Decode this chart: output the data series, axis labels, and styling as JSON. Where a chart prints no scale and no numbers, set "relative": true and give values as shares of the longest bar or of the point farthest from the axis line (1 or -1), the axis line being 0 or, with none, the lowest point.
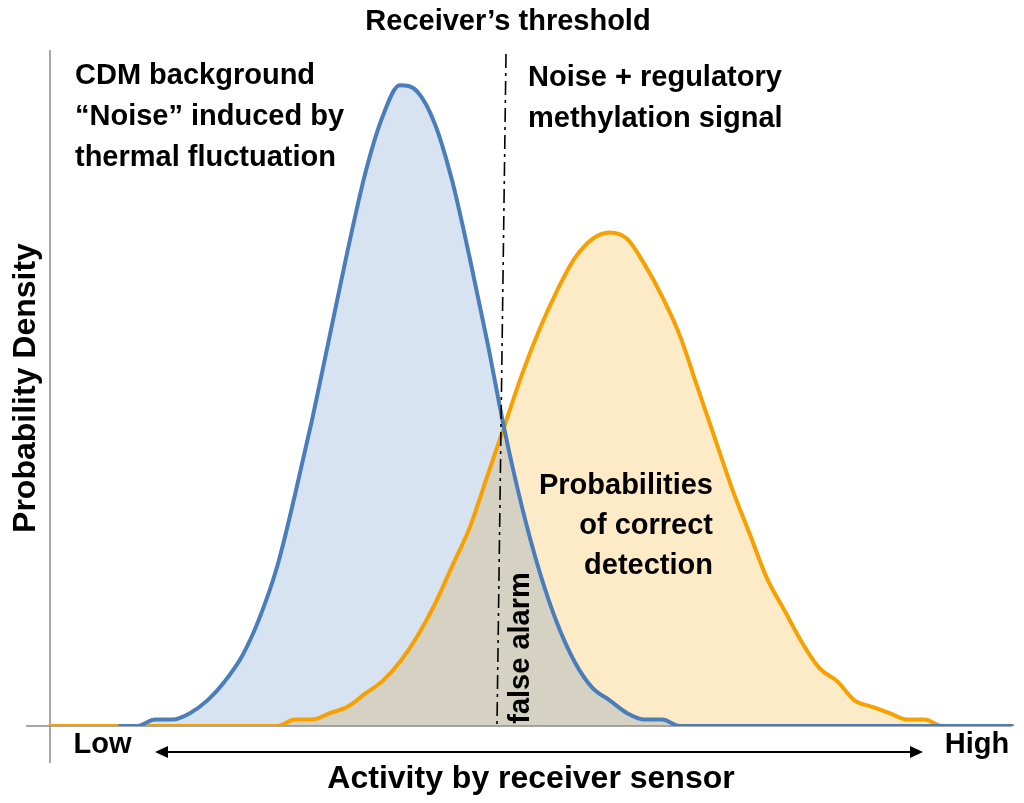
{
  "chart_data": {
    "type": "area",
    "relative": true,
    "xlabel": "Activity by receiver sensor",
    "ylabel": "Probability Density",
    "categories": [
      null,
      null,
      null,
      "Low",
      null,
      null,
      null,
      null,
      null,
      null,
      null,
      null,
      null,
      null,
      null,
      null,
      null,
      null,
      null,
      null,
      null,
      null,
      null,
      null,
      null,
      null,
      null,
      null,
      null,
      null,
      null,
      null,
      null,
      null,
      null,
      null,
      null,
      null,
      null,
      null,
      null,
      null,
      null,
      null,
      null,
      null,
      null,
      null,
      null,
      null,
      null,
      null,
      null,
      "High",
      null,
      null
    ],
    "series": [
      {
        "name": "CDM background “Noise” induced by thermal fluctuation",
        "color": "#4a7ebb",
        "values": [
          null,
          null,
          null,
          null,
          0,
          0,
          0.01,
          0.01,
          0.02,
          0.04,
          0.07,
          0.11,
          0.17,
          0.25,
          0.36,
          0.48,
          0.61,
          0.74,
          0.86,
          0.95,
          1,
          0.99,
          0.94,
          0.85,
          0.73,
          0.6,
          0.46,
          0.34,
          0.24,
          0.16,
          0.1,
          0.06,
          0.04,
          0.02,
          0.01,
          0.01,
          0,
          0,
          0,
          0,
          0,
          0,
          0,
          0,
          0,
          0,
          0,
          0,
          0,
          0,
          0,
          0,
          0,
          0,
          0,
          0
        ]
      },
      {
        "name": "Noise + regulatory methylation signal",
        "color": "#f7a000",
        "values": [
          0,
          0,
          0,
          0,
          0,
          0,
          0,
          0,
          0,
          0,
          0,
          0,
          0,
          0,
          0.01,
          0.01,
          0.02,
          0.03,
          0.05,
          0.07,
          0.1,
          0.14,
          0.19,
          0.25,
          0.31,
          0.39,
          0.47,
          0.55,
          0.62,
          0.68,
          0.73,
          0.76,
          0.77,
          0.76,
          0.72,
          0.67,
          0.61,
          0.53,
          0.45,
          0.37,
          0.3,
          0.23,
          0.18,
          0.13,
          0.09,
          0.07,
          0.04,
          0.03,
          0.02,
          0.01,
          0.01,
          0,
          0,
          0,
          0,
          0
        ]
      }
    ],
    "annotations": [
      "Receiver’s threshold",
      "Probabilities of correct detection",
      "false alarm"
    ]
  }
}
